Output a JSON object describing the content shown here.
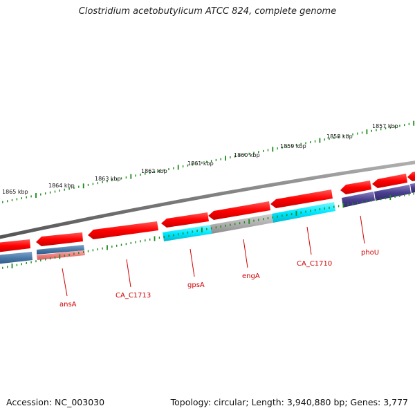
{
  "title": "Clostridium acetobutylicum ATCC 824, complete genome",
  "footer": {
    "accession": "Accession: NC_003030",
    "summary": "Topology: circular; Length: 3,940,880 bp; Genes: 3,777"
  },
  "colors": {
    "backbone": "#8a8a8a",
    "tick": "#1a8a1a",
    "label": "#d00000"
  },
  "ticks": [
    {
      "label": "1865 kbp",
      "pos": 1865
    },
    {
      "label": "1864 kbp",
      "pos": 1864
    },
    {
      "label": "1863 kbp",
      "pos": 1863
    },
    {
      "label": "1862 kbp",
      "pos": 1862
    },
    {
      "label": "1861 kbp",
      "pos": 1861
    },
    {
      "label": "1860 kbp",
      "pos": 1860
    },
    {
      "label": "1859 kbp",
      "pos": 1859
    },
    {
      "label": "1858 kbp",
      "pos": 1858
    },
    {
      "label": "1857 kbp",
      "pos": 1857
    }
  ],
  "gene_labels": [
    {
      "name": "ansA"
    },
    {
      "name": "CA_C1713"
    },
    {
      "name": "gpsA"
    },
    {
      "name": "engA"
    },
    {
      "name": "CA_C1710"
    },
    {
      "name": "phoU"
    }
  ]
}
